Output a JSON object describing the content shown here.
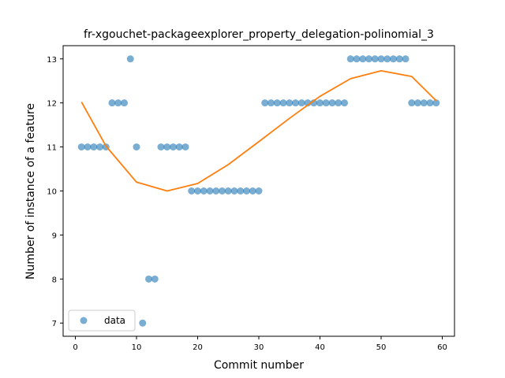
{
  "chart_data": {
    "type": "scatter",
    "title": "fr-xgouchet-packageexplorer_property_delegation-polinomial_3",
    "xlabel": "Commit number",
    "ylabel": "Number of instance of a feature",
    "xlim": [
      -2,
      62
    ],
    "ylim": [
      6.7,
      13.3
    ],
    "x_ticks": [
      0,
      10,
      20,
      30,
      40,
      50,
      60
    ],
    "y_ticks": [
      7,
      8,
      9,
      10,
      11,
      12,
      13
    ],
    "grid": false,
    "legend": {
      "placement": "lower-left",
      "entries": [
        "data"
      ]
    },
    "colors": {
      "data": "#1f77b4",
      "fit": "#ff7f0e"
    },
    "series": [
      {
        "name": "data",
        "kind": "scatter",
        "x": [
          1,
          2,
          3,
          4,
          5,
          6,
          7,
          8,
          9,
          10,
          11,
          12,
          13,
          14,
          15,
          16,
          17,
          18,
          19,
          20,
          21,
          22,
          23,
          24,
          25,
          26,
          27,
          28,
          29,
          30,
          31,
          32,
          33,
          34,
          35,
          36,
          37,
          38,
          39,
          40,
          41,
          42,
          43,
          44,
          45,
          46,
          47,
          48,
          49,
          50,
          51,
          52,
          53,
          54,
          55,
          56,
          57,
          58,
          59
        ],
        "y": [
          11,
          11,
          11,
          11,
          11,
          12,
          12,
          12,
          13,
          11,
          7,
          8,
          8,
          11,
          11,
          11,
          11,
          11,
          10,
          10,
          10,
          10,
          10,
          10,
          10,
          10,
          10,
          10,
          10,
          10,
          12,
          12,
          12,
          12,
          12,
          12,
          12,
          12,
          12,
          12,
          12,
          12,
          12,
          12,
          13,
          13,
          13,
          13,
          13,
          13,
          13,
          13,
          13,
          13,
          12,
          12,
          12,
          12,
          12
        ]
      },
      {
        "kind": "line",
        "x": [
          1,
          5,
          10,
          15,
          20,
          25,
          30,
          35,
          40,
          45,
          50,
          55,
          59
        ],
        "y": [
          12.02,
          11.02,
          10.2,
          10.0,
          10.17,
          10.6,
          11.12,
          11.65,
          12.15,
          12.55,
          12.73,
          12.6,
          12.05
        ]
      }
    ]
  }
}
